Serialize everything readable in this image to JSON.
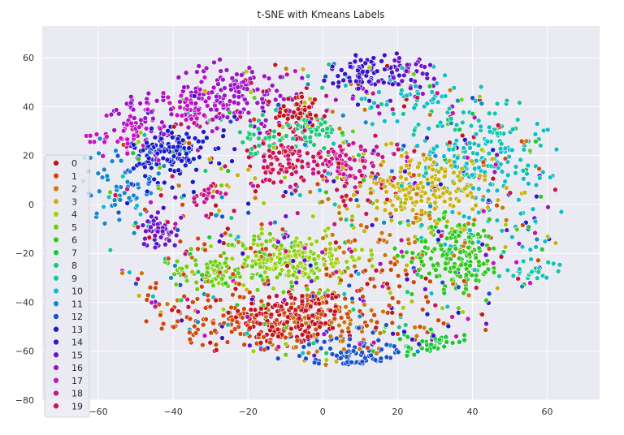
{
  "chart_data": {
    "type": "scatter",
    "title": "t-SNE with Kmeans Labels",
    "xlabel": "",
    "ylabel": "",
    "xlim": [
      -75,
      74
    ],
    "ylim": [
      -80,
      73
    ],
    "x_ticks": [
      -60,
      -40,
      -20,
      0,
      20,
      40,
      60
    ],
    "y_ticks": [
      60,
      40,
      20,
      0,
      -20,
      -40,
      -60,
      -80
    ],
    "x_tick_labels": [
      "−60",
      "−40",
      "−20",
      "0",
      "20",
      "40",
      "60"
    ],
    "y_tick_labels": [
      "60",
      "40",
      "20",
      "0",
      "−20",
      "−40",
      "−60",
      "−80"
    ],
    "grid": true,
    "legend_position": "left",
    "legend": [
      {
        "label": "0",
        "color": "#c0141e"
      },
      {
        "label": "1",
        "color": "#cc4a0e"
      },
      {
        "label": "2",
        "color": "#c77a10"
      },
      {
        "label": "3",
        "color": "#c9b214"
      },
      {
        "label": "4",
        "color": "#9ed01a"
      },
      {
        "label": "5",
        "color": "#6ccd1c"
      },
      {
        "label": "6",
        "color": "#32c61e"
      },
      {
        "label": "7",
        "color": "#1ec63a"
      },
      {
        "label": "8",
        "color": "#1ec878"
      },
      {
        "label": "9",
        "color": "#16c4a8"
      },
      {
        "label": "10",
        "color": "#14bcc8"
      },
      {
        "label": "11",
        "color": "#1688cc"
      },
      {
        "label": "12",
        "color": "#1a52cc"
      },
      {
        "label": "13",
        "color": "#1a1ccc"
      },
      {
        "label": "14",
        "color": "#3a14c6"
      },
      {
        "label": "15",
        "color": "#6e14c8"
      },
      {
        "label": "16",
        "color": "#9c14c6"
      },
      {
        "label": "17",
        "color": "#c414c2"
      },
      {
        "label": "18",
        "color": "#c8148c"
      },
      {
        "label": "19",
        "color": "#c81450"
      }
    ],
    "clusters": [
      {
        "label": "0",
        "cx": -8,
        "cy": -46,
        "sx": 8,
        "sy": 6,
        "n": 170
      },
      {
        "label": "0",
        "cx": -7,
        "cy": 38,
        "sx": 3,
        "sy": 4,
        "n": 55
      },
      {
        "label": "0",
        "cx": -31,
        "cy": -60,
        "sx": 1.5,
        "sy": 1.5,
        "n": 14
      },
      {
        "label": "1",
        "cx": -22,
        "cy": -48,
        "sx": 10,
        "sy": 6,
        "n": 110
      },
      {
        "label": "1",
        "cx": 10,
        "cy": -40,
        "sx": 12,
        "sy": 10,
        "n": 70
      },
      {
        "label": "1",
        "cx": -28,
        "cy": -30,
        "sx": 8,
        "sy": 10,
        "n": 40
      },
      {
        "label": "2",
        "cx": 4,
        "cy": -52,
        "sx": 12,
        "sy": 8,
        "n": 60
      },
      {
        "label": "2",
        "cx": 18,
        "cy": -12,
        "sx": 10,
        "sy": 8,
        "n": 45
      },
      {
        "label": "3",
        "cx": 27,
        "cy": 6,
        "sx": 9,
        "sy": 8,
        "n": 200
      },
      {
        "label": "4",
        "cx": -7,
        "cy": -22,
        "sx": 9,
        "sy": 5,
        "n": 140
      },
      {
        "label": "5",
        "cx": -30,
        "cy": -28,
        "sx": 5,
        "sy": 3,
        "n": 60
      },
      {
        "label": "5",
        "cx": -14,
        "cy": -25,
        "sx": 9,
        "sy": 6,
        "n": 80
      },
      {
        "label": "6",
        "cx": 36,
        "cy": -20,
        "sx": 6,
        "sy": 7,
        "n": 160
      },
      {
        "label": "7",
        "cx": 30,
        "cy": -58,
        "sx": 4,
        "sy": 3,
        "n": 70
      },
      {
        "label": "8",
        "cx": -2,
        "cy": 31,
        "sx": 3,
        "sy": 3,
        "n": 45
      },
      {
        "label": "8",
        "cx": -17,
        "cy": 27,
        "sx": 4,
        "sy": 4,
        "n": 30
      },
      {
        "label": "9",
        "cx": 55,
        "cy": -27,
        "sx": 4,
        "sy": 2,
        "n": 22
      },
      {
        "label": "9",
        "cx": 40,
        "cy": 28,
        "sx": 12,
        "sy": 8,
        "n": 60
      },
      {
        "label": "10",
        "cx": 43,
        "cy": 20,
        "sx": 10,
        "sy": 8,
        "n": 110
      },
      {
        "label": "10",
        "cx": 25,
        "cy": 42,
        "sx": 8,
        "sy": 6,
        "n": 40
      },
      {
        "label": "10",
        "cx": 45,
        "cy": -10,
        "sx": 10,
        "sy": 12,
        "n": 50
      },
      {
        "label": "11",
        "cx": -54,
        "cy": 8,
        "sx": 6,
        "sy": 8,
        "n": 55
      },
      {
        "label": "11",
        "cx": -60,
        "cy": 45,
        "sx": 1.5,
        "sy": 1,
        "n": 10
      },
      {
        "label": "12",
        "cx": 9,
        "cy": -62,
        "sx": 7,
        "sy": 4,
        "n": 110
      },
      {
        "label": "13",
        "cx": -41,
        "cy": 21,
        "sx": 5,
        "sy": 6,
        "n": 140
      },
      {
        "label": "14",
        "cx": 12,
        "cy": 54,
        "sx": 5,
        "sy": 4,
        "n": 75
      },
      {
        "label": "15",
        "cx": -44,
        "cy": -10,
        "sx": 2.5,
        "sy": 4,
        "n": 45
      },
      {
        "label": "15",
        "cx": 22,
        "cy": 53,
        "sx": 6,
        "sy": 4,
        "n": 35
      },
      {
        "label": "16",
        "cx": -24,
        "cy": 45,
        "sx": 8,
        "sy": 6,
        "n": 140
      },
      {
        "label": "16",
        "cx": -48,
        "cy": 38,
        "sx": 5,
        "sy": 5,
        "n": 40
      },
      {
        "label": "17",
        "cx": -55,
        "cy": 30,
        "sx": 6,
        "sy": 4,
        "n": 60
      },
      {
        "label": "17",
        "cx": -35,
        "cy": 38,
        "sx": 5,
        "sy": 5,
        "n": 40
      },
      {
        "label": "18",
        "cx": 6,
        "cy": 17,
        "sx": 7,
        "sy": 4,
        "n": 90
      },
      {
        "label": "18",
        "cx": -32,
        "cy": 4,
        "sx": 2,
        "sy": 2,
        "n": 18
      },
      {
        "label": "19",
        "cx": -11,
        "cy": 18,
        "sx": 6,
        "sy": 6,
        "n": 90
      },
      {
        "label": "19",
        "cx": 9,
        "cy": 6,
        "sx": 5,
        "sy": 4,
        "n": 25
      }
    ]
  }
}
